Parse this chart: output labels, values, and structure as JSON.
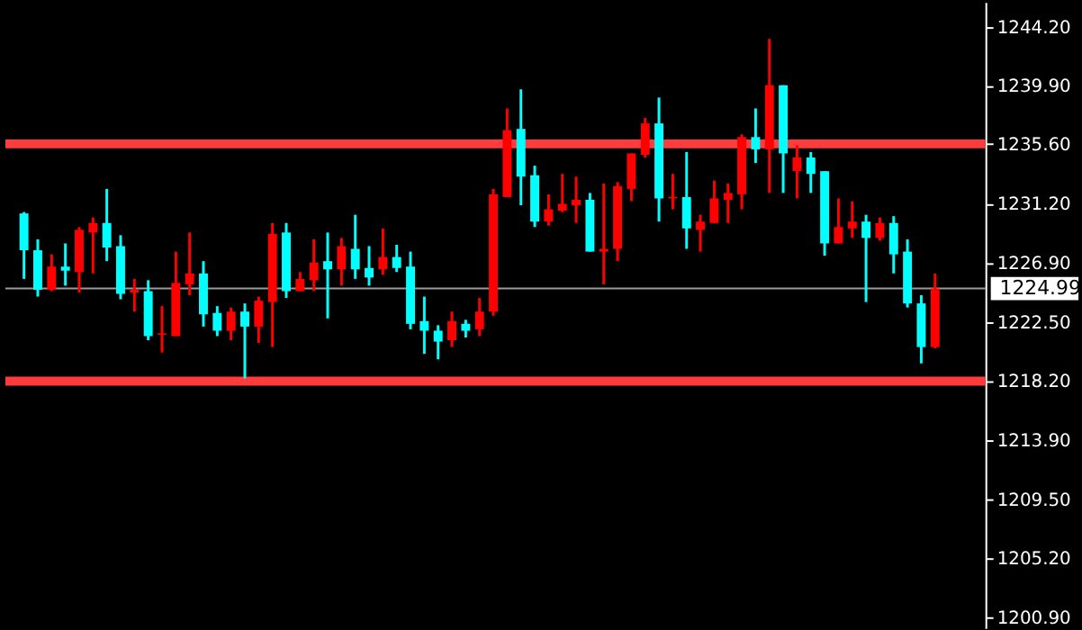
{
  "chart_data": {
    "type": "candlestick",
    "categories": [
      null,
      null,
      null,
      null,
      null,
      null,
      null,
      null,
      null,
      null,
      null,
      null,
      null,
      null,
      null,
      null,
      null,
      null,
      null,
      null,
      null,
      null,
      null,
      null,
      null,
      null,
      null,
      null,
      null,
      null,
      null,
      null,
      null,
      null,
      null,
      null,
      null,
      null,
      null,
      null,
      null,
      null,
      null,
      null,
      null,
      null,
      null,
      null,
      null,
      null,
      null,
      null,
      null,
      null,
      null,
      null,
      null,
      null,
      null,
      null,
      null,
      null,
      null,
      null,
      null,
      null,
      null
    ],
    "ohlc": [
      [
        1230.5,
        1230.6,
        1225.7,
        1227.8
      ],
      [
        1227.8,
        1228.6,
        1224.4,
        1224.9
      ],
      [
        1224.9,
        1227.5,
        1224.8,
        1226.6
      ],
      [
        1226.6,
        1228.3,
        1225.2,
        1226.3
      ],
      [
        1226.2,
        1229.5,
        1224.7,
        1229.3
      ],
      [
        1229.1,
        1230.2,
        1226.1,
        1229.8
      ],
      [
        1229.8,
        1232.3,
        1227.0,
        1228.0
      ],
      [
        1228.1,
        1228.9,
        1224.2,
        1224.6
      ],
      [
        1224.7,
        1225.7,
        1223.3,
        1224.9
      ],
      [
        1224.8,
        1225.6,
        1221.2,
        1221.5
      ],
      [
        1221.6,
        1223.7,
        1220.3,
        1221.7
      ],
      [
        1221.5,
        1227.7,
        1221.5,
        1225.4
      ],
      [
        1225.3,
        1229.1,
        1224.5,
        1226.1
      ],
      [
        1226.1,
        1227.0,
        1222.2,
        1223.1
      ],
      [
        1223.2,
        1223.7,
        1221.5,
        1221.9
      ],
      [
        1221.9,
        1223.6,
        1221.2,
        1223.3
      ],
      [
        1223.3,
        1223.9,
        1218.4,
        1222.2
      ],
      [
        1222.2,
        1224.4,
        1221.0,
        1224.1
      ],
      [
        1224.0,
        1229.8,
        1220.7,
        1229.0
      ],
      [
        1229.1,
        1229.8,
        1224.3,
        1224.8
      ],
      [
        1224.8,
        1226.2,
        1224.8,
        1225.7
      ],
      [
        1225.6,
        1228.6,
        1224.8,
        1226.9
      ],
      [
        1227.0,
        1229.1,
        1222.8,
        1226.4
      ],
      [
        1226.4,
        1228.7,
        1225.2,
        1228.1
      ],
      [
        1227.9,
        1230.4,
        1225.7,
        1226.4
      ],
      [
        1226.5,
        1228.1,
        1225.2,
        1225.8
      ],
      [
        1226.4,
        1229.4,
        1226.0,
        1227.3
      ],
      [
        1227.3,
        1228.2,
        1226.2,
        1226.5
      ],
      [
        1226.6,
        1227.7,
        1222.0,
        1222.4
      ],
      [
        1222.6,
        1224.4,
        1220.2,
        1221.9
      ],
      [
        1221.9,
        1222.3,
        1219.8,
        1221.1
      ],
      [
        1221.2,
        1223.3,
        1220.7,
        1222.6
      ],
      [
        1222.4,
        1222.7,
        1221.4,
        1221.9
      ],
      [
        1222.0,
        1224.3,
        1221.5,
        1223.3
      ],
      [
        1223.3,
        1232.3,
        1223.0,
        1231.9
      ],
      [
        1231.7,
        1238.2,
        1231.7,
        1236.6
      ],
      [
        1236.7,
        1239.6,
        1231.1,
        1233.2
      ],
      [
        1233.3,
        1234.0,
        1229.5,
        1229.9
      ],
      [
        1229.9,
        1231.9,
        1229.6,
        1230.8
      ],
      [
        1230.7,
        1233.4,
        1230.6,
        1231.2
      ],
      [
        1231.1,
        1233.2,
        1229.8,
        1231.5
      ],
      [
        1231.5,
        1232.0,
        1227.7,
        1227.7
      ],
      [
        1227.7,
        1232.7,
        1225.3,
        1227.9
      ],
      [
        1227.9,
        1232.8,
        1227.0,
        1232.5
      ],
      [
        1232.3,
        1234.9,
        1231.4,
        1234.9
      ],
      [
        1234.8,
        1237.5,
        1234.6,
        1237.1
      ],
      [
        1237.1,
        1239.0,
        1229.9,
        1231.6
      ],
      [
        1231.6,
        1233.4,
        1230.8,
        1231.7
      ],
      [
        1231.7,
        1235.0,
        1227.9,
        1229.4
      ],
      [
        1229.3,
        1230.4,
        1227.7,
        1229.9
      ],
      [
        1229.8,
        1232.9,
        1229.8,
        1231.6
      ],
      [
        1231.5,
        1232.7,
        1229.8,
        1232.0
      ],
      [
        1231.9,
        1236.3,
        1230.8,
        1236.1
      ],
      [
        1236.1,
        1238.2,
        1234.2,
        1235.2
      ],
      [
        1235.2,
        1243.3,
        1232.0,
        1239.9
      ],
      [
        1239.9,
        1239.9,
        1232.0,
        1234.9
      ],
      [
        1233.6,
        1235.5,
        1231.6,
        1234.6
      ],
      [
        1234.6,
        1235.0,
        1232.0,
        1233.4
      ],
      [
        1233.6,
        1233.6,
        1227.4,
        1228.3
      ],
      [
        1228.3,
        1231.6,
        1228.3,
        1229.5
      ],
      [
        1229.4,
        1231.4,
        1228.7,
        1229.9
      ],
      [
        1229.9,
        1230.4,
        1224.0,
        1228.7
      ],
      [
        1228.7,
        1230.2,
        1228.5,
        1229.8
      ],
      [
        1229.8,
        1230.3,
        1226.1,
        1227.5
      ],
      [
        1227.7,
        1228.6,
        1223.6,
        1223.9
      ],
      [
        1223.9,
        1224.5,
        1219.5,
        1220.7
      ],
      [
        1220.7,
        1226.1,
        1220.6,
        1224.99
      ]
    ],
    "colors": [
      "#00ffff",
      "#00ffff",
      "#ff0000",
      "#00ffff",
      "#ff0000",
      "#ff0000",
      "#00ffff",
      "#00ffff",
      "#ff0000",
      "#00ffff",
      "#ff0000",
      "#ff0000",
      "#ff0000",
      "#00ffff",
      "#00ffff",
      "#ff0000",
      "#00ffff",
      "#ff0000",
      "#ff0000",
      "#00ffff",
      "#ff0000",
      "#ff0000",
      "#00ffff",
      "#ff0000",
      "#00ffff",
      "#00ffff",
      "#ff0000",
      "#00ffff",
      "#00ffff",
      "#00ffff",
      "#00ffff",
      "#ff0000",
      "#00ffff",
      "#ff0000",
      "#ff0000",
      "#ff0000",
      "#00ffff",
      "#00ffff",
      "#ff0000",
      "#ff0000",
      "#ff0000",
      "#00ffff",
      "#ff0000",
      "#ff0000",
      "#ff0000",
      "#ff0000",
      "#00ffff",
      "#ff0000",
      "#00ffff",
      "#ff0000",
      "#ff0000",
      "#ff0000",
      "#ff0000",
      "#00ffff",
      "#ff0000",
      "#00ffff",
      "#ff0000",
      "#00ffff",
      "#00ffff",
      "#ff0000",
      "#ff0000",
      "#00ffff",
      "#ff0000",
      "#00ffff",
      "#00ffff",
      "#00ffff",
      "#ff0000"
    ],
    "ylim": [
      1200.1,
      1246.0
    ],
    "yticks": [
      {
        "value": 1244.2,
        "label": "1244.20"
      },
      {
        "value": 1239.9,
        "label": "1239.90"
      },
      {
        "value": 1235.6,
        "label": "1235.60"
      },
      {
        "value": 1231.2,
        "label": "1231.20"
      },
      {
        "value": 1226.9,
        "label": "1226.90"
      },
      {
        "value": 1222.5,
        "label": "1222.50"
      },
      {
        "value": 1218.2,
        "label": "1218.20"
      },
      {
        "value": 1213.9,
        "label": "1213.90"
      },
      {
        "value": 1209.5,
        "label": "1209.50"
      },
      {
        "value": 1205.2,
        "label": "1205.20"
      },
      {
        "value": 1200.9,
        "label": "1200.90"
      }
    ],
    "ref_lines": [
      {
        "axis": "y",
        "value": 1235.6,
        "color": "#ff3b3b"
      },
      {
        "axis": "y",
        "value": 1218.2,
        "color": "#ff3b3b"
      },
      {
        "axis": "y",
        "value": 1224.99,
        "label": "1224.99",
        "color": "#9a9a9a"
      }
    ],
    "grid": false,
    "tick_labels": "y"
  }
}
